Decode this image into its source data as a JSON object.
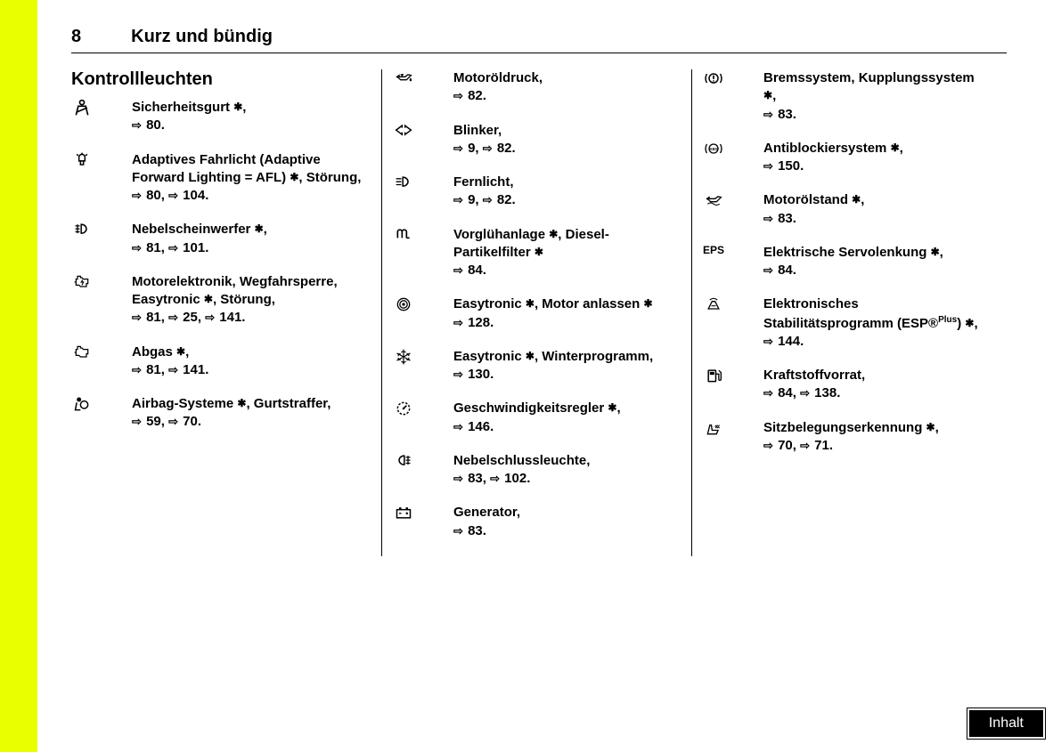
{
  "page_number": "8",
  "chapter_title": "Kurz und bündig",
  "section_title": "Kontrollleuchten",
  "inhalt_label": "Inhalt",
  "columns": [
    [
      {
        "icon": "seatbelt",
        "text": "Sicherheitsgurt ✱,",
        "refs": "⇨ 80."
      },
      {
        "icon": "afl",
        "text": "Adaptives Fahrlicht (Adaptive Forward Lighting = AFL) ✱, Störung,",
        "refs": "⇨ 80, ⇨ 104."
      },
      {
        "icon": "foglight-front",
        "text": "Nebelscheinwerfer ✱,",
        "refs": "⇨ 81, ⇨ 101."
      },
      {
        "icon": "engine-elec",
        "text": "Motorelektronik, Wegfahrsperre, Easytronic ✱, Störung,",
        "refs": "⇨ 81, ⇨ 25, ⇨ 141."
      },
      {
        "icon": "engine",
        "text": "Abgas ✱,",
        "refs": "⇨ 81, ⇨ 141."
      },
      {
        "icon": "airbag",
        "text": "Airbag-Systeme ✱, Gurtstraffer,",
        "refs": "⇨ 59, ⇨ 70."
      }
    ],
    [
      {
        "icon": "oilcan",
        "text": "Motoröldruck,",
        "refs": "⇨ 82."
      },
      {
        "icon": "blinker",
        "text": "Blinker,",
        "refs": "⇨ 9, ⇨ 82."
      },
      {
        "icon": "highbeam",
        "text": "Fernlicht,",
        "refs": "⇨ 9, ⇨ 82."
      },
      {
        "icon": "preheat",
        "text": "Vorglühanlage ✱, Diesel-Partikelfilter ✱",
        "refs": "⇨ 84."
      },
      {
        "icon": "circle-r",
        "text": "Easytronic ✱, Motor anlassen ✱",
        "refs": "⇨ 128."
      },
      {
        "icon": "snowflake",
        "text": "Easytronic ✱, Winterprogramm,",
        "refs": "⇨ 130."
      },
      {
        "icon": "cruise",
        "text": "Geschwindigkeitsregler ✱,",
        "refs": "⇨ 146."
      },
      {
        "icon": "foglight-rear",
        "text": "Nebelschlussleuchte,",
        "refs": "⇨ 83, ⇨ 102."
      },
      {
        "icon": "battery",
        "text": "Generator,",
        "refs": "⇨ 83."
      }
    ],
    [
      {
        "icon": "brake",
        "text": "Bremssystem, Kupplungssystem ✱,",
        "refs": "⇨ 83."
      },
      {
        "icon": "abs",
        "text": "Antiblockiersystem ✱,",
        "refs": "⇨ 150."
      },
      {
        "icon": "oillevel",
        "text": "Motorölstand ✱,",
        "refs": "⇨ 83."
      },
      {
        "icon": "eps",
        "text": "Elektrische Servolenkung ✱,",
        "refs": "⇨ 84."
      },
      {
        "icon": "esp",
        "text": "Elektronisches Stabilitätsprogramm (ESP®ᴾˡᵘˢ) ✱,",
        "refs": "⇨ 144."
      },
      {
        "icon": "fuel",
        "text": "Kraftstoffvorrat,",
        "refs": "⇨ 84, ⇨ 138."
      },
      {
        "icon": "seat-occ",
        "text": "Sitzbelegungserkennung ✱,",
        "refs": "⇨ 70, ⇨ 71."
      }
    ]
  ]
}
